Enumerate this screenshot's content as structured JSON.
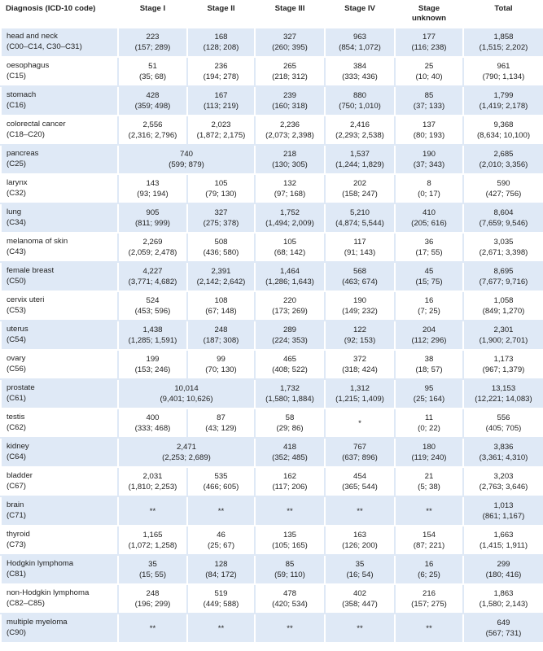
{
  "header": {
    "diagnosis": "Diagnosis (ICD-10 code)",
    "stage1": "Stage I",
    "stage2": "Stage II",
    "stage3": "Stage III",
    "stage4": "Stage IV",
    "stage_unknown_1": "Stage",
    "stage_unknown_2": "unknown",
    "total": "Total"
  },
  "rows": [
    {
      "name": "head and neck",
      "code": "(C00–C14, C30–C31)",
      "s1": [
        "223",
        "(157; 289)"
      ],
      "s2": [
        "168",
        "(128; 208)"
      ],
      "s3": [
        "327",
        "(260; 395)"
      ],
      "s4": [
        "963",
        "(854; 1,072)"
      ],
      "su": [
        "177",
        "(116; 238)"
      ],
      "tot": [
        "1,858",
        "(1,515; 2,202)"
      ]
    },
    {
      "name": "oesophagus",
      "code": "(C15)",
      "s1": [
        "51",
        "(35; 68)"
      ],
      "s2": [
        "236",
        "(194; 278)"
      ],
      "s3": [
        "265",
        "(218; 312)"
      ],
      "s4": [
        "384",
        "(333; 436)"
      ],
      "su": [
        "25",
        "(10; 40)"
      ],
      "tot": [
        "961",
        "(790; 1,134)"
      ]
    },
    {
      "name": "stomach",
      "code": "(C16)",
      "s1": [
        "428",
        "(359; 498)"
      ],
      "s2": [
        "167",
        "(113; 219)"
      ],
      "s3": [
        "239",
        "(160; 318)"
      ],
      "s4": [
        "880",
        "(750; 1,010)"
      ],
      "su": [
        "85",
        "(37; 133)"
      ],
      "tot": [
        "1,799",
        "(1,419; 2,178)"
      ]
    },
    {
      "name": "colorectal cancer",
      "code": "(C18–C20)",
      "s1": [
        "2,556",
        "(2,316; 2,796)"
      ],
      "s2": [
        "2,023",
        "(1,872; 2,175)"
      ],
      "s3": [
        "2,236",
        "(2,073; 2,398)"
      ],
      "s4": [
        "2,416",
        "(2,293; 2,538)"
      ],
      "su": [
        "137",
        "(80; 193)"
      ],
      "tot": [
        "9,368",
        "(8,634; 10,100)"
      ]
    },
    {
      "name": "pancreas",
      "code": "(C25)",
      "s12": [
        "740",
        "(599; 879)"
      ],
      "s3": [
        "218",
        "(130; 305)"
      ],
      "s4": [
        "1,537",
        "(1,244; 1,829)"
      ],
      "su": [
        "190",
        "(37; 343)"
      ],
      "tot": [
        "2,685",
        "(2,010; 3,356)"
      ]
    },
    {
      "name": "larynx",
      "code": "(C32)",
      "s1": [
        "143",
        "(93; 194)"
      ],
      "s2": [
        "105",
        "(79; 130)"
      ],
      "s3": [
        "132",
        "(97; 168)"
      ],
      "s4": [
        "202",
        "(158; 247)"
      ],
      "su": [
        "8",
        "(0; 17)"
      ],
      "tot": [
        "590",
        "(427; 756)"
      ]
    },
    {
      "name": "lung",
      "code": "(C34)",
      "s1": [
        "905",
        "(811; 999)"
      ],
      "s2": [
        "327",
        "(275; 378)"
      ],
      "s3": [
        "1,752",
        "(1,494; 2,009)"
      ],
      "s4": [
        "5,210",
        "(4,874; 5,544)"
      ],
      "su": [
        "410",
        "(205; 616)"
      ],
      "tot": [
        "8,604",
        "(7,659; 9,546)"
      ]
    },
    {
      "name": "melanoma of skin",
      "code": "(C43)",
      "s1": [
        "2,269",
        "(2,059; 2,478)"
      ],
      "s2": [
        "508",
        "(436; 580)"
      ],
      "s3": [
        "105",
        "(68; 142)"
      ],
      "s4": [
        "117",
        "(91; 143)"
      ],
      "su": [
        "36",
        "(17; 55)"
      ],
      "tot": [
        "3,035",
        "(2,671; 3,398)"
      ]
    },
    {
      "name": "female breast",
      "code": "(C50)",
      "s1": [
        "4,227",
        "(3,771; 4,682)"
      ],
      "s2": [
        "2,391",
        "(2,142; 2,642)"
      ],
      "s3": [
        "1,464",
        "(1,286; 1,643)"
      ],
      "s4": [
        "568",
        "(463; 674)"
      ],
      "su": [
        "45",
        "(15; 75)"
      ],
      "tot": [
        "8,695",
        "(7,677; 9,716)"
      ]
    },
    {
      "name": "cervix uteri",
      "code": "(C53)",
      "s1": [
        "524",
        "(453; 596)"
      ],
      "s2": [
        "108",
        "(67; 148)"
      ],
      "s3": [
        "220",
        "(173; 269)"
      ],
      "s4": [
        "190",
        "(149; 232)"
      ],
      "su": [
        "16",
        "(7; 25)"
      ],
      "tot": [
        "1,058",
        "(849; 1,270)"
      ]
    },
    {
      "name": "uterus",
      "code": "(C54)",
      "s1": [
        "1,438",
        "(1,285; 1,591)"
      ],
      "s2": [
        "248",
        "(187; 308)"
      ],
      "s3": [
        "289",
        "(224; 353)"
      ],
      "s4": [
        "122",
        "(92; 153)"
      ],
      "su": [
        "204",
        "(112; 296)"
      ],
      "tot": [
        "2,301",
        "(1,900; 2,701)"
      ]
    },
    {
      "name": "ovary",
      "code": "(C56)",
      "s1": [
        "199",
        "(153; 246)"
      ],
      "s2": [
        "99",
        "(70; 130)"
      ],
      "s3": [
        "465",
        "(408; 522)"
      ],
      "s4": [
        "372",
        "(318; 424)"
      ],
      "su": [
        "38",
        "(18; 57)"
      ],
      "tot": [
        "1,173",
        "(967; 1,379)"
      ]
    },
    {
      "name": "prostate",
      "code": "(C61)",
      "s12": [
        "10,014",
        "(9,401; 10,626)"
      ],
      "s3": [
        "1,732",
        "(1,580; 1,884)"
      ],
      "s4": [
        "1,312",
        "(1,215; 1,409)"
      ],
      "su": [
        "95",
        "(25; 164)"
      ],
      "tot": [
        "13,153",
        "(12,221; 14,083)"
      ]
    },
    {
      "name": "testis",
      "code": "(C62)",
      "s1": [
        "400",
        "(333; 468)"
      ],
      "s2": [
        "87",
        "(43; 129)"
      ],
      "s3": [
        "58",
        "(29; 86)"
      ],
      "s4": [
        "*",
        ""
      ],
      "su": [
        "11",
        "(0; 22)"
      ],
      "tot": [
        "556",
        "(405; 705)"
      ]
    },
    {
      "name": "kidney",
      "code": "(C64)",
      "s12": [
        "2,471",
        "(2,253; 2,689)"
      ],
      "s3": [
        "418",
        "(352; 485)"
      ],
      "s4": [
        "767",
        "(637; 896)"
      ],
      "su": [
        "180",
        "(119; 240)"
      ],
      "tot": [
        "3,836",
        "(3,361; 4,310)"
      ]
    },
    {
      "name": "bladder",
      "code": "(C67)",
      "s1": [
        "2,031",
        "(1,810; 2,253)"
      ],
      "s2": [
        "535",
        "(466; 605)"
      ],
      "s3": [
        "162",
        "(117; 206)"
      ],
      "s4": [
        "454",
        "(365; 544)"
      ],
      "su": [
        "21",
        "(5; 38)"
      ],
      "tot": [
        "3,203",
        "(2,763; 3,646)"
      ]
    },
    {
      "name": "brain",
      "code": "(C71)",
      "s1": [
        "**",
        ""
      ],
      "s2": [
        "**",
        ""
      ],
      "s3": [
        "**",
        ""
      ],
      "s4": [
        "**",
        ""
      ],
      "su": [
        "**",
        ""
      ],
      "tot": [
        "1,013",
        "(861; 1,167)"
      ]
    },
    {
      "name": "thyroid",
      "code": "(C73)",
      "s1": [
        "1,165",
        "(1,072; 1,258)"
      ],
      "s2": [
        "46",
        "(25; 67)"
      ],
      "s3": [
        "135",
        "(105; 165)"
      ],
      "s4": [
        "163",
        "(126; 200)"
      ],
      "su": [
        "154",
        "(87; 221)"
      ],
      "tot": [
        "1,663",
        "(1,415; 1,911)"
      ]
    },
    {
      "name": "Hodgkin lymphoma",
      "code": "(C81)",
      "s1": [
        "35",
        "(15; 55)"
      ],
      "s2": [
        "128",
        "(84; 172)"
      ],
      "s3": [
        "85",
        "(59; 110)"
      ],
      "s4": [
        "35",
        "(16; 54)"
      ],
      "su": [
        "16",
        "(6; 25)"
      ],
      "tot": [
        "299",
        "(180; 416)"
      ]
    },
    {
      "name": "non-Hodgkin lymphoma",
      "code": "(C82–C85)",
      "s1": [
        "248",
        "(196; 299)"
      ],
      "s2": [
        "519",
        "(449; 588)"
      ],
      "s3": [
        "478",
        "(420; 534)"
      ],
      "s4": [
        "402",
        "(358; 447)"
      ],
      "su": [
        "216",
        "(157; 275)"
      ],
      "tot": [
        "1,863",
        "(1,580; 2,143)"
      ]
    },
    {
      "name": "multiple myeloma",
      "code": "(C90)",
      "s1": [
        "**",
        ""
      ],
      "s2": [
        "**",
        ""
      ],
      "s3": [
        "**",
        ""
      ],
      "s4": [
        "**",
        ""
      ],
      "su": [
        "**",
        ""
      ],
      "tot": [
        "649",
        "(567; 731)"
      ]
    }
  ]
}
